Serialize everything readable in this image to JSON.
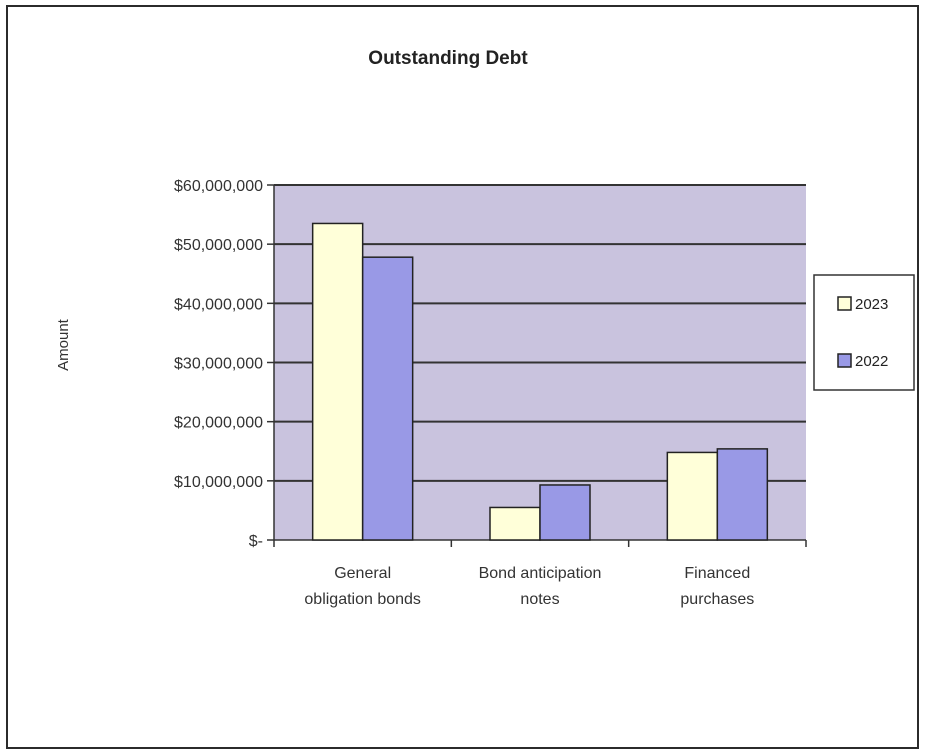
{
  "chart_data": {
    "type": "bar",
    "title": "Outstanding Debt",
    "ylabel": "Amount",
    "xlabel": "",
    "categories": [
      [
        "General",
        "obligation bonds"
      ],
      [
        "Bond anticipation",
        "notes"
      ],
      [
        "Financed",
        "purchases"
      ]
    ],
    "series": [
      {
        "name": "2023",
        "values": [
          53500000,
          5500000,
          14800000
        ],
        "color": "#ffffd9"
      },
      {
        "name": "2022",
        "values": [
          47800000,
          9300000,
          15400000
        ],
        "color": "#9999e6"
      }
    ],
    "ylim": [
      0,
      60000000
    ],
    "yticks": [
      "$-",
      "$10,000,000",
      "$20,000,000",
      "$30,000,000",
      "$40,000,000",
      "$50,000,000",
      "$60,000,000"
    ],
    "grid": true,
    "legend": "right",
    "plot_background": "#c9c3de"
  }
}
